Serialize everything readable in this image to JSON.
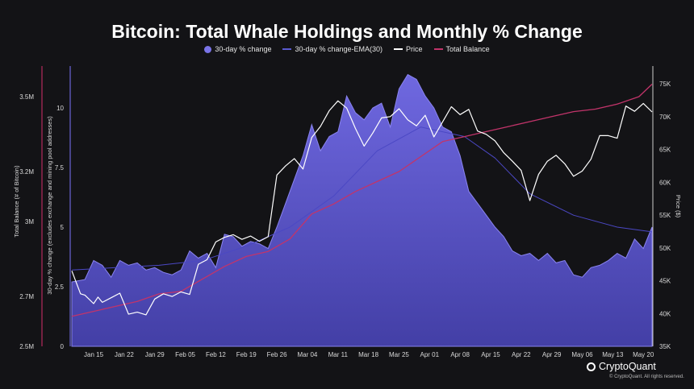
{
  "chart_data": {
    "type": "area",
    "title": "Bitcoin: Total Whale Holdings and Monthly % Change",
    "legend": [
      "30-day % change",
      "30-day % change-EMA(30)",
      "Price",
      "Total Balance"
    ],
    "legend_position": "top-center",
    "watermark": "CryptoQuant",
    "y_left_outer": {
      "label": "Total Balance (# of Bitcoin)",
      "ticks": [
        "2.5M",
        "2.7M",
        "3M",
        "3.2M",
        "3.5M"
      ],
      "tick_values": [
        2.5,
        2.7,
        3.0,
        3.2,
        3.5
      ]
    },
    "y_left_inner": {
      "label": "30-day % change (excludes exchange and mining pool addresses)",
      "ticks": [
        "0",
        "2.5",
        "5",
        "7.5",
        "10"
      ],
      "tick_values": [
        0,
        2.5,
        5,
        7.5,
        10
      ]
    },
    "y_right": {
      "label": "Price ($)",
      "ticks": [
        "35K",
        "40K",
        "45K",
        "50K",
        "55K",
        "60K",
        "65K",
        "70K",
        "75K"
      ],
      "tick_values": [
        35,
        40,
        45,
        50,
        55,
        60,
        65,
        70,
        75
      ]
    },
    "x_ticks": [
      "Jan 15",
      "Jan 22",
      "Jan 29",
      "Feb 05",
      "Feb 12",
      "Feb 19",
      "Feb 26",
      "Mar 04",
      "Mar 11",
      "Mar 18",
      "Mar 25",
      "Apr 01",
      "Apr 08",
      "Apr 15",
      "Apr 22",
      "Apr 29",
      "May 06",
      "May 13",
      "May 20"
    ],
    "x_range_days": [
      -5,
      128
    ],
    "series": [
      {
        "name": "30-day % change",
        "color": "#5b55c7",
        "x": [
          -5,
          -2,
          0,
          2,
          4,
          6,
          8,
          10,
          12,
          14,
          16,
          18,
          20,
          22,
          24,
          26,
          28,
          30,
          32,
          34,
          36,
          38,
          40,
          42,
          44,
          46,
          48,
          50,
          52,
          54,
          56,
          58,
          60,
          62,
          64,
          66,
          68,
          70,
          72,
          74,
          76,
          78,
          80,
          82,
          84,
          86,
          88,
          90,
          92,
          94,
          96,
          98,
          100,
          102,
          104,
          106,
          108,
          110,
          112,
          114,
          116,
          118,
          120,
          122,
          124,
          126,
          128
        ],
        "values": [
          2.7,
          2.8,
          3.6,
          3.4,
          2.9,
          3.6,
          3.4,
          3.5,
          3.2,
          3.3,
          3.1,
          3.0,
          3.2,
          4.0,
          3.7,
          3.9,
          3.3,
          4.7,
          4.6,
          4.2,
          4.4,
          4.3,
          4.1,
          5.0,
          6.0,
          7.0,
          8.0,
          9.3,
          8.2,
          8.8,
          9.0,
          10.5,
          9.8,
          9.5,
          10.0,
          10.2,
          9.2,
          10.8,
          11.4,
          11.2,
          10.5,
          10.0,
          9.2,
          9.0,
          8.0,
          6.5,
          6.0,
          5.5,
          5.0,
          4.6,
          4.0,
          3.8,
          3.9,
          3.6,
          3.9,
          3.5,
          3.6,
          3.0,
          2.9,
          3.3,
          3.4,
          3.6,
          3.9,
          3.7,
          4.5,
          4.1,
          5.0
        ]
      },
      {
        "name": "30-day % change-EMA(30)",
        "color": "#3a3aa0",
        "x": [
          -5,
          5,
          15,
          25,
          35,
          45,
          55,
          65,
          75,
          85,
          92,
          100,
          110,
          120,
          128
        ],
        "values": [
          3.2,
          3.3,
          3.4,
          3.6,
          4.2,
          5.0,
          6.3,
          8.2,
          9.2,
          8.8,
          7.9,
          6.4,
          5.5,
          5.0,
          4.8
        ]
      },
      {
        "name": "Price",
        "color": "#ffffff",
        "x": [
          -5,
          -3,
          -2,
          0,
          1,
          2,
          4,
          6,
          8,
          10,
          12,
          14,
          16,
          18,
          20,
          22,
          24,
          26,
          28,
          30,
          32,
          34,
          36,
          38,
          40,
          42,
          44,
          46,
          48,
          50,
          52,
          54,
          56,
          58,
          60,
          62,
          64,
          66,
          68,
          70,
          72,
          74,
          76,
          78,
          80,
          82,
          84,
          86,
          88,
          90,
          92,
          94,
          96,
          98,
          100,
          102,
          104,
          106,
          108,
          110,
          112,
          114,
          116,
          118,
          120,
          122,
          124,
          126,
          128
        ],
        "values": [
          46.5,
          43,
          42.8,
          41.5,
          42.5,
          41.7,
          42.4,
          43.1,
          39.9,
          40.2,
          39.8,
          42.2,
          43,
          42.6,
          43.3,
          42.9,
          47.5,
          48.2,
          50.9,
          51.6,
          52.0,
          51.3,
          51.8,
          51.0,
          51.7,
          61.1,
          62.5,
          63.6,
          62.0,
          66.8,
          68.5,
          70.9,
          72.4,
          71.3,
          68.2,
          65.5,
          67.5,
          69.8,
          70.0,
          71.2,
          69.5,
          68.6,
          70.2,
          66.9,
          69.2,
          71.5,
          70.3,
          71.1,
          67.8,
          67.3,
          66.3,
          64.5,
          63.2,
          61.8,
          57.2,
          61.2,
          63.2,
          64.1,
          62.8,
          60.9,
          61.7,
          63.5,
          67.1,
          67.1,
          66.7,
          71.6,
          70.8,
          72.0,
          70.7
        ]
      },
      {
        "name": "Total Balance",
        "color": "#b3285c",
        "x": [
          -5,
          0,
          5,
          10,
          15,
          20,
          25,
          30,
          35,
          40,
          45,
          50,
          55,
          60,
          65,
          70,
          75,
          80,
          85,
          90,
          95,
          100,
          105,
          110,
          115,
          120,
          125,
          128
        ],
        "values": [
          2.62,
          2.64,
          2.66,
          2.68,
          2.71,
          2.72,
          2.77,
          2.82,
          2.86,
          2.88,
          2.93,
          3.03,
          3.07,
          3.12,
          3.16,
          3.2,
          3.26,
          3.32,
          3.34,
          3.36,
          3.38,
          3.4,
          3.42,
          3.44,
          3.45,
          3.47,
          3.5,
          3.55
        ]
      }
    ]
  }
}
